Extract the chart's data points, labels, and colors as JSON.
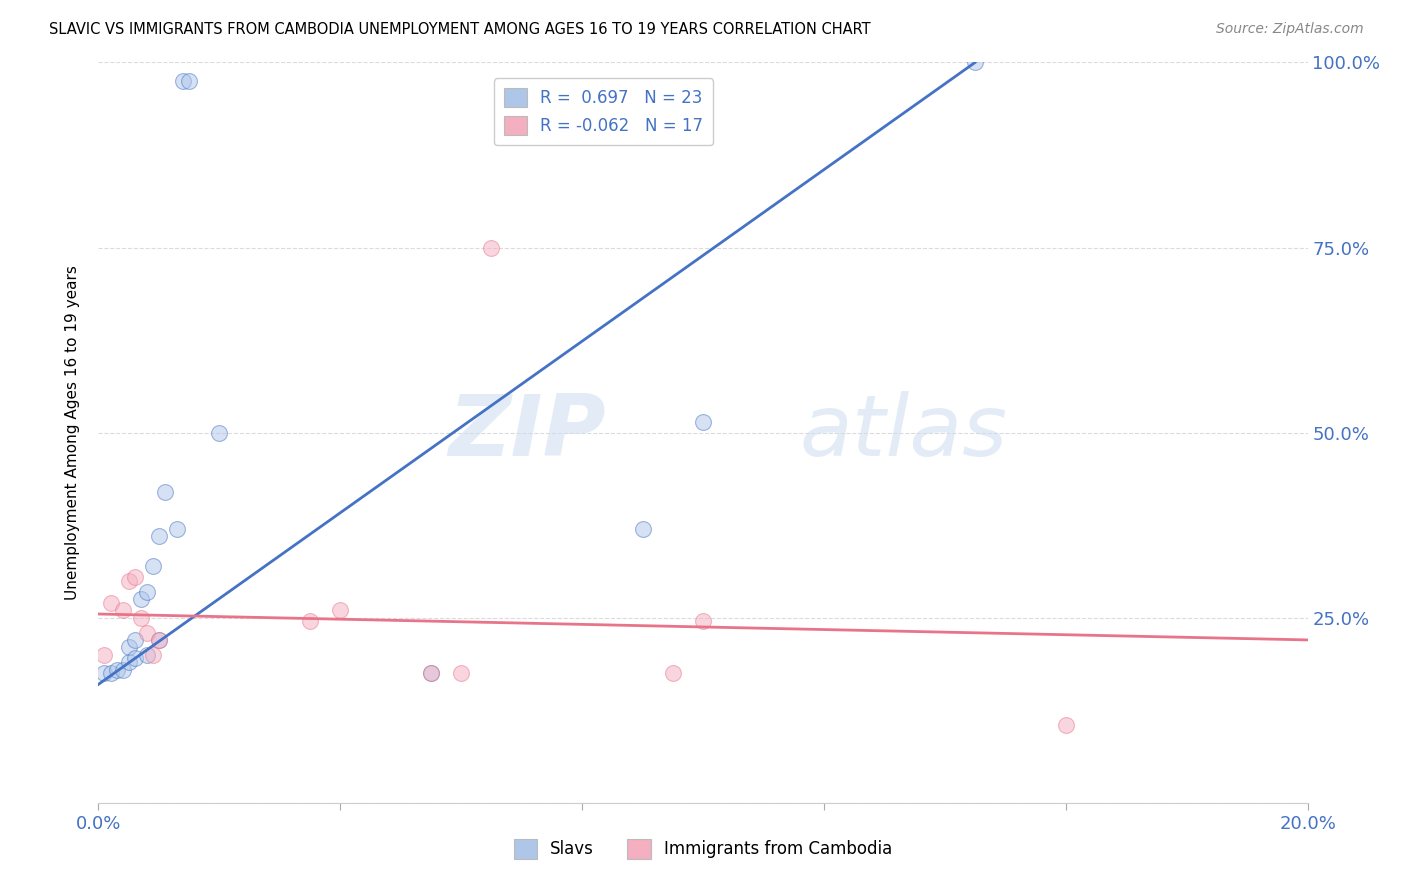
{
  "title": "SLAVIC VS IMMIGRANTS FROM CAMBODIA UNEMPLOYMENT AMONG AGES 16 TO 19 YEARS CORRELATION CHART",
  "source": "Source: ZipAtlas.com",
  "ylabel": "Unemployment Among Ages 16 to 19 years",
  "xlim": [
    0.0,
    0.2
  ],
  "ylim": [
    0.0,
    1.0
  ],
  "xticks": [
    0.0,
    0.04,
    0.08,
    0.12,
    0.16,
    0.2
  ],
  "yticks": [
    0.0,
    0.25,
    0.5,
    0.75,
    1.0
  ],
  "slavs_R": 0.697,
  "slavs_N": 23,
  "cambodia_R": -0.062,
  "cambodia_N": 17,
  "slavs_color": "#aec6e8",
  "cambodia_color": "#f4afc0",
  "slavs_line_color": "#4472c4",
  "cambodia_line_color": "#e8748a",
  "watermark_zip": "ZIP",
  "watermark_atlas": "atlas",
  "slavs_x": [
    0.001,
    0.002,
    0.003,
    0.004,
    0.005,
    0.005,
    0.006,
    0.006,
    0.007,
    0.008,
    0.008,
    0.009,
    0.01,
    0.01,
    0.011,
    0.013,
    0.014,
    0.015,
    0.02,
    0.055,
    0.09,
    0.145,
    0.1
  ],
  "slavs_y": [
    0.175,
    0.175,
    0.18,
    0.18,
    0.19,
    0.21,
    0.195,
    0.22,
    0.275,
    0.2,
    0.285,
    0.32,
    0.22,
    0.36,
    0.42,
    0.37,
    0.975,
    0.975,
    0.5,
    0.175,
    0.37,
    1.0,
    0.515
  ],
  "cambodia_x": [
    0.001,
    0.002,
    0.004,
    0.005,
    0.006,
    0.007,
    0.008,
    0.009,
    0.01,
    0.035,
    0.04,
    0.055,
    0.06,
    0.065,
    0.095,
    0.1,
    0.16
  ],
  "cambodia_y": [
    0.2,
    0.27,
    0.26,
    0.3,
    0.305,
    0.25,
    0.23,
    0.2,
    0.22,
    0.245,
    0.26,
    0.175,
    0.175,
    0.75,
    0.175,
    0.245,
    0.105
  ],
  "slavs_line_x": [
    0.0,
    0.145
  ],
  "slavs_line_y": [
    0.16,
    1.0
  ],
  "cambodia_line_x": [
    0.0,
    0.2
  ],
  "cambodia_line_y": [
    0.255,
    0.22
  ],
  "dot_size": 130,
  "dot_alpha": 0.5,
  "background_color": "#ffffff",
  "grid_color": "#cccccc",
  "grid_alpha": 0.7
}
